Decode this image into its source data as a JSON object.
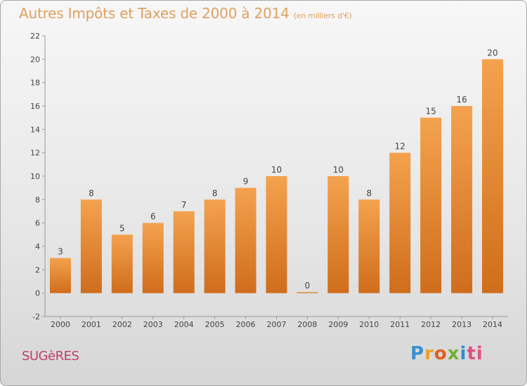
{
  "title": "Autres Impôts et Taxes de 2000 à 2014",
  "subtitle": "(en milliers d'€)",
  "commune": "SUGèRES",
  "brand": [
    "P",
    "r",
    "o",
    "x",
    "i",
    "ti"
  ],
  "colors": {
    "bar_top": "#f4a24e",
    "bar_bottom": "#cf6d1c",
    "title": "#e0a060",
    "commune": "#c0406a"
  },
  "chart_data": {
    "type": "bar",
    "categories": [
      "2000",
      "2001",
      "2002",
      "2003",
      "2004",
      "2005",
      "2006",
      "2007",
      "2008",
      "2009",
      "2010",
      "2011",
      "2012",
      "2013",
      "2014"
    ],
    "values": [
      3,
      8,
      5,
      6,
      7,
      8,
      9,
      10,
      0,
      10,
      8,
      12,
      15,
      16,
      20
    ],
    "labels": [
      "3",
      "8",
      "5",
      "6",
      "7",
      "8",
      "9",
      "10",
      "0",
      "10",
      "8",
      "12",
      "15",
      "16",
      "20"
    ],
    "ylim": [
      -2,
      22
    ],
    "yticks": [
      -2,
      0,
      2,
      4,
      6,
      8,
      10,
      12,
      14,
      16,
      18,
      20,
      22
    ],
    "grid": false,
    "legend": "none"
  }
}
